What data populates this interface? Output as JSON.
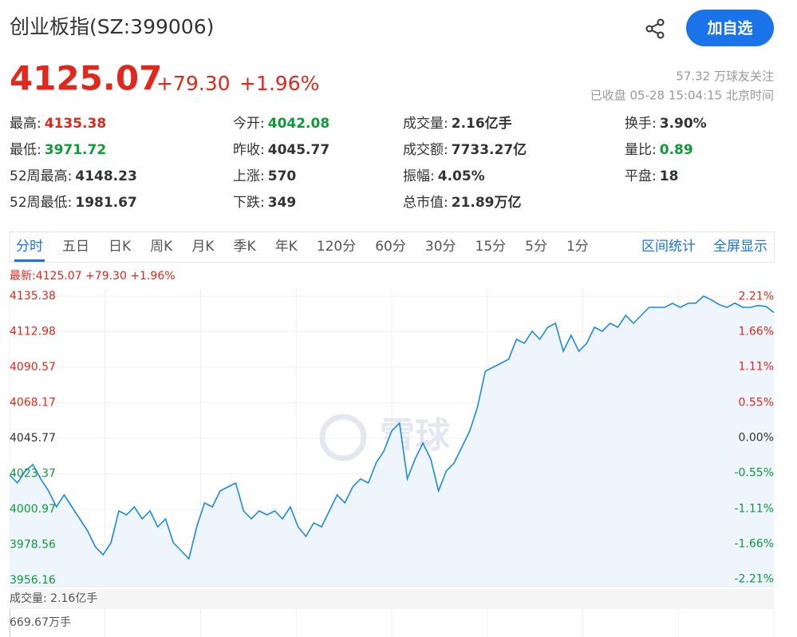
{
  "header": {
    "title": "创业板指(SZ:399006)",
    "button": "加自选"
  },
  "quote": {
    "price": "4125.07",
    "change": "+79.30",
    "percent": "+1.96%",
    "followers": "57.32 万球友关注",
    "status": "已收盘 05-28 15:04:15 北京时间"
  },
  "stats": [
    {
      "label": "最高:",
      "value": "4135.38",
      "color": "#e0281c"
    },
    {
      "label": "今开:",
      "value": "4042.08",
      "color": "#0f9a3a"
    },
    {
      "label": "成交量:",
      "value": "2.16亿手",
      "color": "#333333"
    },
    {
      "label": "换手:",
      "value": "3.90%",
      "color": "#333333"
    },
    {
      "label": "最低:",
      "value": "3971.72",
      "color": "#0f9a3a"
    },
    {
      "label": "昨收:",
      "value": "4045.77",
      "color": "#333333"
    },
    {
      "label": "成交额:",
      "value": "7733.27亿",
      "color": "#333333"
    },
    {
      "label": "量比:",
      "value": "0.89",
      "color": "#0f9a3a"
    },
    {
      "label": "52周最高:",
      "value": "4148.23",
      "color": "#333333"
    },
    {
      "label": "上涨:",
      "value": "570",
      "color": "#333333"
    },
    {
      "label": "振幅:",
      "value": "4.05%",
      "color": "#333333"
    },
    {
      "label": "平盘:",
      "value": "18",
      "color": "#333333"
    },
    {
      "label": "52周最低:",
      "value": "1981.67",
      "color": "#333333"
    },
    {
      "label": "下跌:",
      "value": "349",
      "color": "#333333"
    },
    {
      "label": "总市值:",
      "value": "21.89万亿",
      "color": "#333333"
    }
  ],
  "tabs": {
    "items": [
      "分时",
      "五日",
      "日K",
      "周K",
      "月K",
      "季K",
      "年K",
      "120分",
      "60分",
      "30分",
      "15分",
      "5分",
      "1分"
    ],
    "active": 0,
    "links": [
      "区间统计",
      "全屏显示"
    ]
  },
  "chart_data": {
    "type": "line",
    "latest_label": "最新:4125.07 +79.30 +1.96%",
    "watermark": "雪球",
    "color": "#1e88e5",
    "area_color": "#eef5fd",
    "ylim": [
      3952.13,
      4139.91
    ],
    "yticks": [
      4135.38,
      4112.98,
      4090.57,
      4068.17,
      4045.77,
      4023.37,
      4000.97,
      3978.56,
      3956.16
    ],
    "y2lim": [
      -2.33,
      2.33
    ],
    "y2ticks": [
      {
        "value": 2.21,
        "label": "2.21%"
      },
      {
        "value": 1.66,
        "label": "1.66%"
      },
      {
        "value": 1.11,
        "label": "1.11%"
      },
      {
        "value": 0.55,
        "label": "0.55%"
      },
      {
        "value": 0,
        "label": "0.00%"
      },
      {
        "value": -0.55,
        "label": "-0.55%"
      },
      {
        "value": -1.11,
        "label": "-1.11%"
      },
      {
        "value": -1.66,
        "label": "-1.66%"
      },
      {
        "value": -2.21,
        "label": "-2.21%"
      }
    ],
    "grid": true,
    "values": [
      4022.61,
      4017.58,
      4025.13,
      4029.16,
      4020.1,
      4012.55,
      4002.48,
      4010.03,
      4002.48,
      3994.93,
      3987.38,
      3977.31,
      3972.27,
      3979.82,
      3999.96,
      3997.44,
      4002.48,
      3994.93,
      3999.96,
      3989.89,
      3994.93,
      3979.82,
      3974.79,
      3969.76,
      3989.89,
      4004.99,
      4002.48,
      4012.55,
      4015.06,
      4017.58,
      3999.96,
      3994.93,
      3999.96,
      3997.44,
      3999.96,
      3994.93,
      4002.48,
      3989.89,
      3983.85,
      3992.41,
      3989.89,
      3999.96,
      4010.03,
      4004.99,
      4015.06,
      4020.1,
      4017.58,
      4030.16,
      4037.72,
      4050.3,
      4055.33,
      4020.1,
      4032.68,
      4042.75,
      4032.68,
      4012.55,
      4025.13,
      4030.16,
      4040.23,
      4050.3,
      4065.4,
      4088.06,
      4090.57,
      4093.09,
      4095.61,
      4108.19,
      4105.67,
      4113.23,
      4108.19,
      4115.74,
      4118.26,
      4100.64,
      4110.71,
      4100.64,
      4105.67,
      4115.74,
      4113.23,
      4118.26,
      4115.74,
      4123.29,
      4118.26,
      4123.29,
      4128.33,
      4128.33,
      4128.33,
      4130.84,
      4128.33,
      4130.84,
      4131.0,
      4135.38,
      4133.0,
      4130.0,
      4128.33,
      4131.0,
      4128.33,
      4128.33,
      4129.5,
      4128.9,
      4125.07
    ],
    "volume_label": "成交量: 2.16亿手",
    "volume_max_label": "669.67万手"
  }
}
